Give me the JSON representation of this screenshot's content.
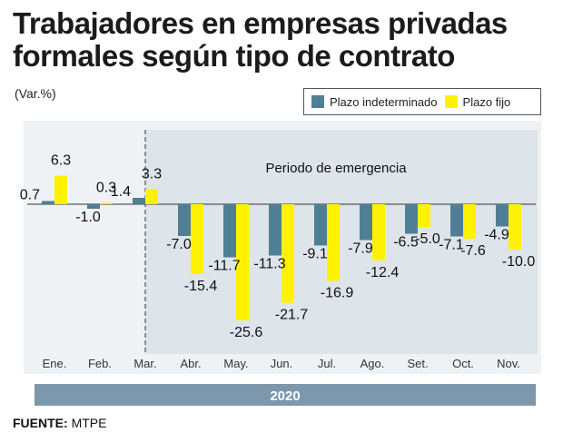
{
  "title": "Trabajadores en empresas privadas formales según tipo de contrato",
  "unit_label": "(Var.%)",
  "source_label": "FUENTE:",
  "source_value": "MTPE",
  "colors": {
    "indeterminado": "#4f7f95",
    "fijo": "#fff200",
    "panel_light": "#eef2f5",
    "panel_shade": "#dde4ea",
    "year_band": "#7d98ac"
  },
  "chart_data": {
    "type": "bar",
    "title": "Trabajadores en empresas privadas formales según tipo de contrato",
    "ylabel": "(Var.%)",
    "xlabel": "2020",
    "categories": [
      "Ene.",
      "Feb.",
      "Mar.",
      "Abr.",
      "May.",
      "Jun.",
      "Jul.",
      "Ago.",
      "Set.",
      "Oct.",
      "Nov."
    ],
    "series": [
      {
        "name": "Plazo indeterminado",
        "values": [
          0.7,
          -1.0,
          1.4,
          -7.0,
          -11.7,
          -11.3,
          -9.1,
          -7.9,
          -6.5,
          -7.1,
          -4.9
        ]
      },
      {
        "name": "Plazo fijo",
        "values": [
          6.3,
          0.3,
          3.3,
          -15.4,
          -25.6,
          -21.7,
          -16.9,
          -12.4,
          -5.0,
          -7.6,
          -10.0
        ]
      }
    ],
    "data_labels": {
      "indeterminado": [
        "0.7",
        "-1.0",
        "1.4",
        "-7.0",
        "-11.7",
        "-11.3",
        "-9.1",
        "-7.9",
        "-6.5",
        "-7.1",
        "-4.9"
      ],
      "fijo": [
        "6.3",
        "0.3",
        "3.3",
        "-15.4",
        "-25.6",
        "-21.7",
        "-16.9",
        "-12.4",
        "-5.0",
        "-7.6",
        "-10.0"
      ]
    },
    "annotation": "Periodo de emergencia",
    "year_label": "2020",
    "shaded_from_category": "Mar.",
    "legend_position": "top-right",
    "grid": false,
    "ylim": [
      -27,
      10
    ]
  }
}
